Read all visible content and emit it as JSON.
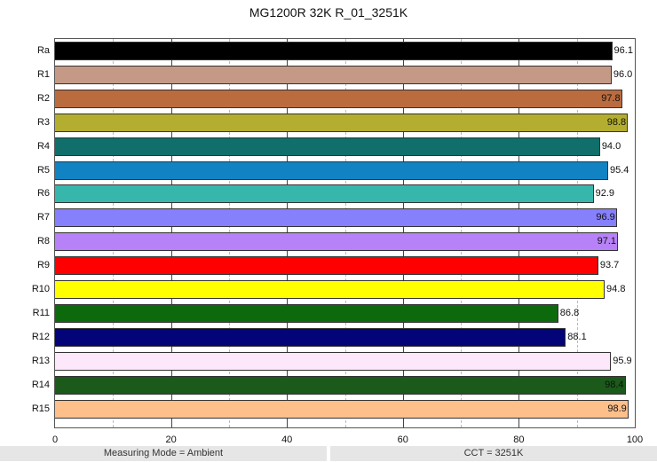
{
  "chart_data": {
    "type": "bar",
    "orientation": "horizontal",
    "title": "MG1200R 32K R_01_3251K",
    "xlabel": "",
    "ylabel": "",
    "xlim": [
      0,
      100
    ],
    "xticks": [
      "0",
      "20",
      "40",
      "60",
      "80",
      "100"
    ],
    "grid": {
      "major": [
        20,
        40,
        60,
        80
      ],
      "minor": [
        10,
        30,
        50,
        70,
        90
      ]
    },
    "categories": [
      "Ra",
      "R1",
      "R2",
      "R3",
      "R4",
      "R5",
      "R6",
      "R7",
      "R8",
      "R9",
      "R10",
      "R11",
      "R12",
      "R13",
      "R14",
      "R15"
    ],
    "values": [
      96.1,
      96.0,
      97.8,
      98.8,
      94.0,
      95.4,
      92.9,
      96.9,
      97.1,
      93.7,
      94.8,
      86.8,
      88.1,
      95.9,
      98.4,
      98.9
    ],
    "value_labels": [
      "96.1",
      "96.0",
      "97.8",
      "98.8",
      "94.0",
      "95.4",
      "92.9",
      "96.9",
      "97.1",
      "93.7",
      "94.8",
      "86.8",
      "88.1",
      "95.9",
      "98.4",
      "98.9"
    ],
    "colors": [
      "#000000",
      "#c49a87",
      "#bb6c3f",
      "#b3ae2f",
      "#106f6b",
      "#1283c2",
      "#37b7ac",
      "#8680fd",
      "#b781f8",
      "#fe0000",
      "#ffff00",
      "#0d6a0c",
      "#030477",
      "#fde8fb",
      "#1b5a1a",
      "#fec08b"
    ],
    "label_inside": [
      false,
      false,
      true,
      true,
      false,
      false,
      false,
      true,
      true,
      false,
      false,
      false,
      false,
      false,
      true,
      true
    ]
  },
  "footer": {
    "left": "Measuring Mode = Ambient",
    "right": "CCT = 3251K"
  }
}
